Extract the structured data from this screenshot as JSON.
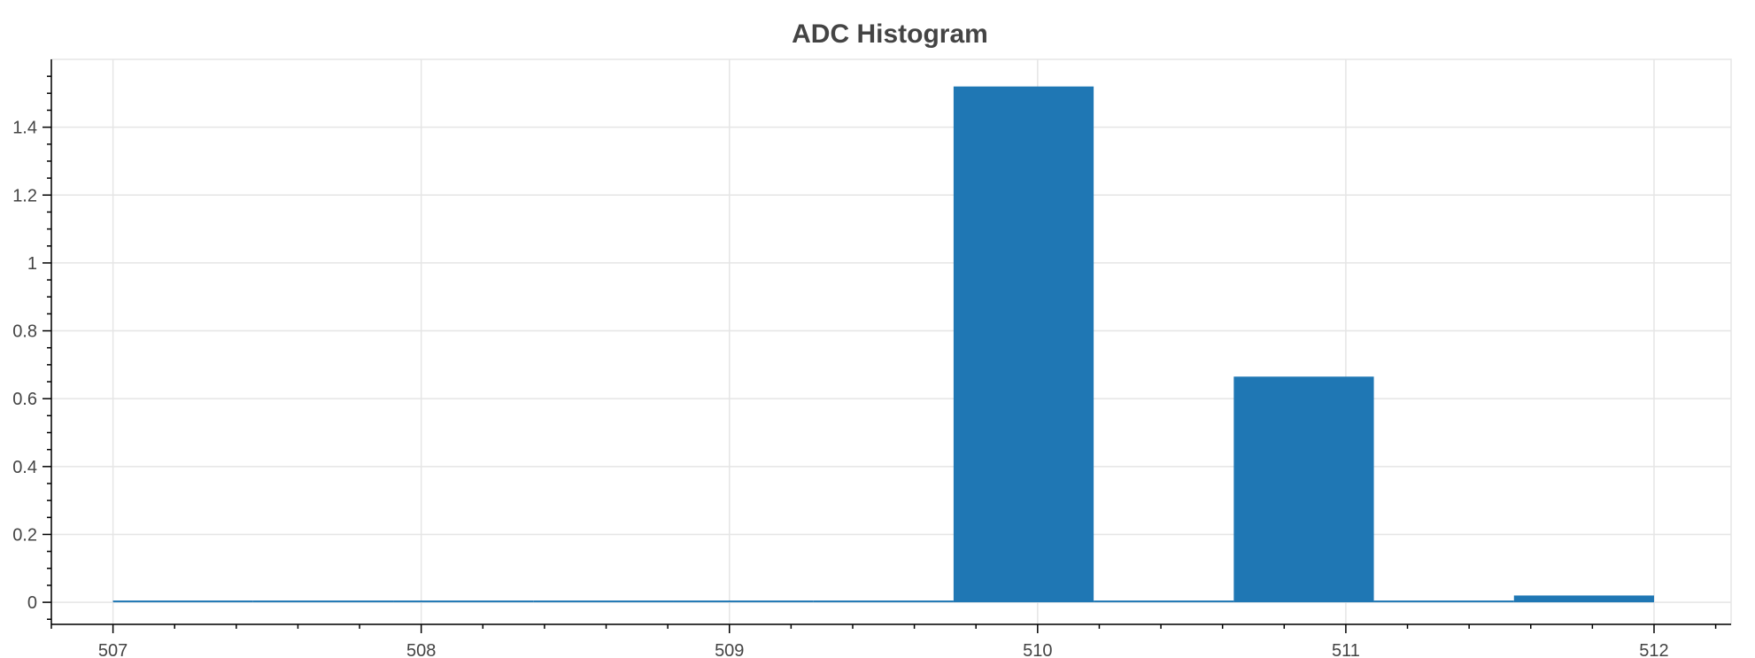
{
  "chart_data": {
    "type": "bar",
    "title": "ADC Histogram",
    "xlabel": "",
    "ylabel": "",
    "xlim": [
      506.8,
      512.25
    ],
    "ylim": [
      -0.065,
      1.6
    ],
    "x_ticks": [
      507,
      508,
      509,
      510,
      511,
      512
    ],
    "x_tick_labels": [
      "507",
      "508",
      "509",
      "510",
      "511",
      "512"
    ],
    "y_ticks": [
      0,
      0.2,
      0.4,
      0.6,
      0.8,
      1,
      1.2,
      1.4
    ],
    "y_tick_labels": [
      "0",
      "0.2",
      "0.4",
      "0.6",
      "0.8",
      "1",
      "1.2",
      "1.4"
    ],
    "bin_edges": [
      507,
      507.4545,
      507.9091,
      508.3636,
      508.8182,
      509.2727,
      509.7273,
      510.1818,
      510.6364,
      511.0909,
      511.5455,
      512
    ],
    "values": [
      0,
      0,
      0,
      0,
      0,
      0,
      1.52,
      0,
      0.665,
      0,
      0.02
    ],
    "grid": true,
    "bar_color": "#1f77b4"
  }
}
